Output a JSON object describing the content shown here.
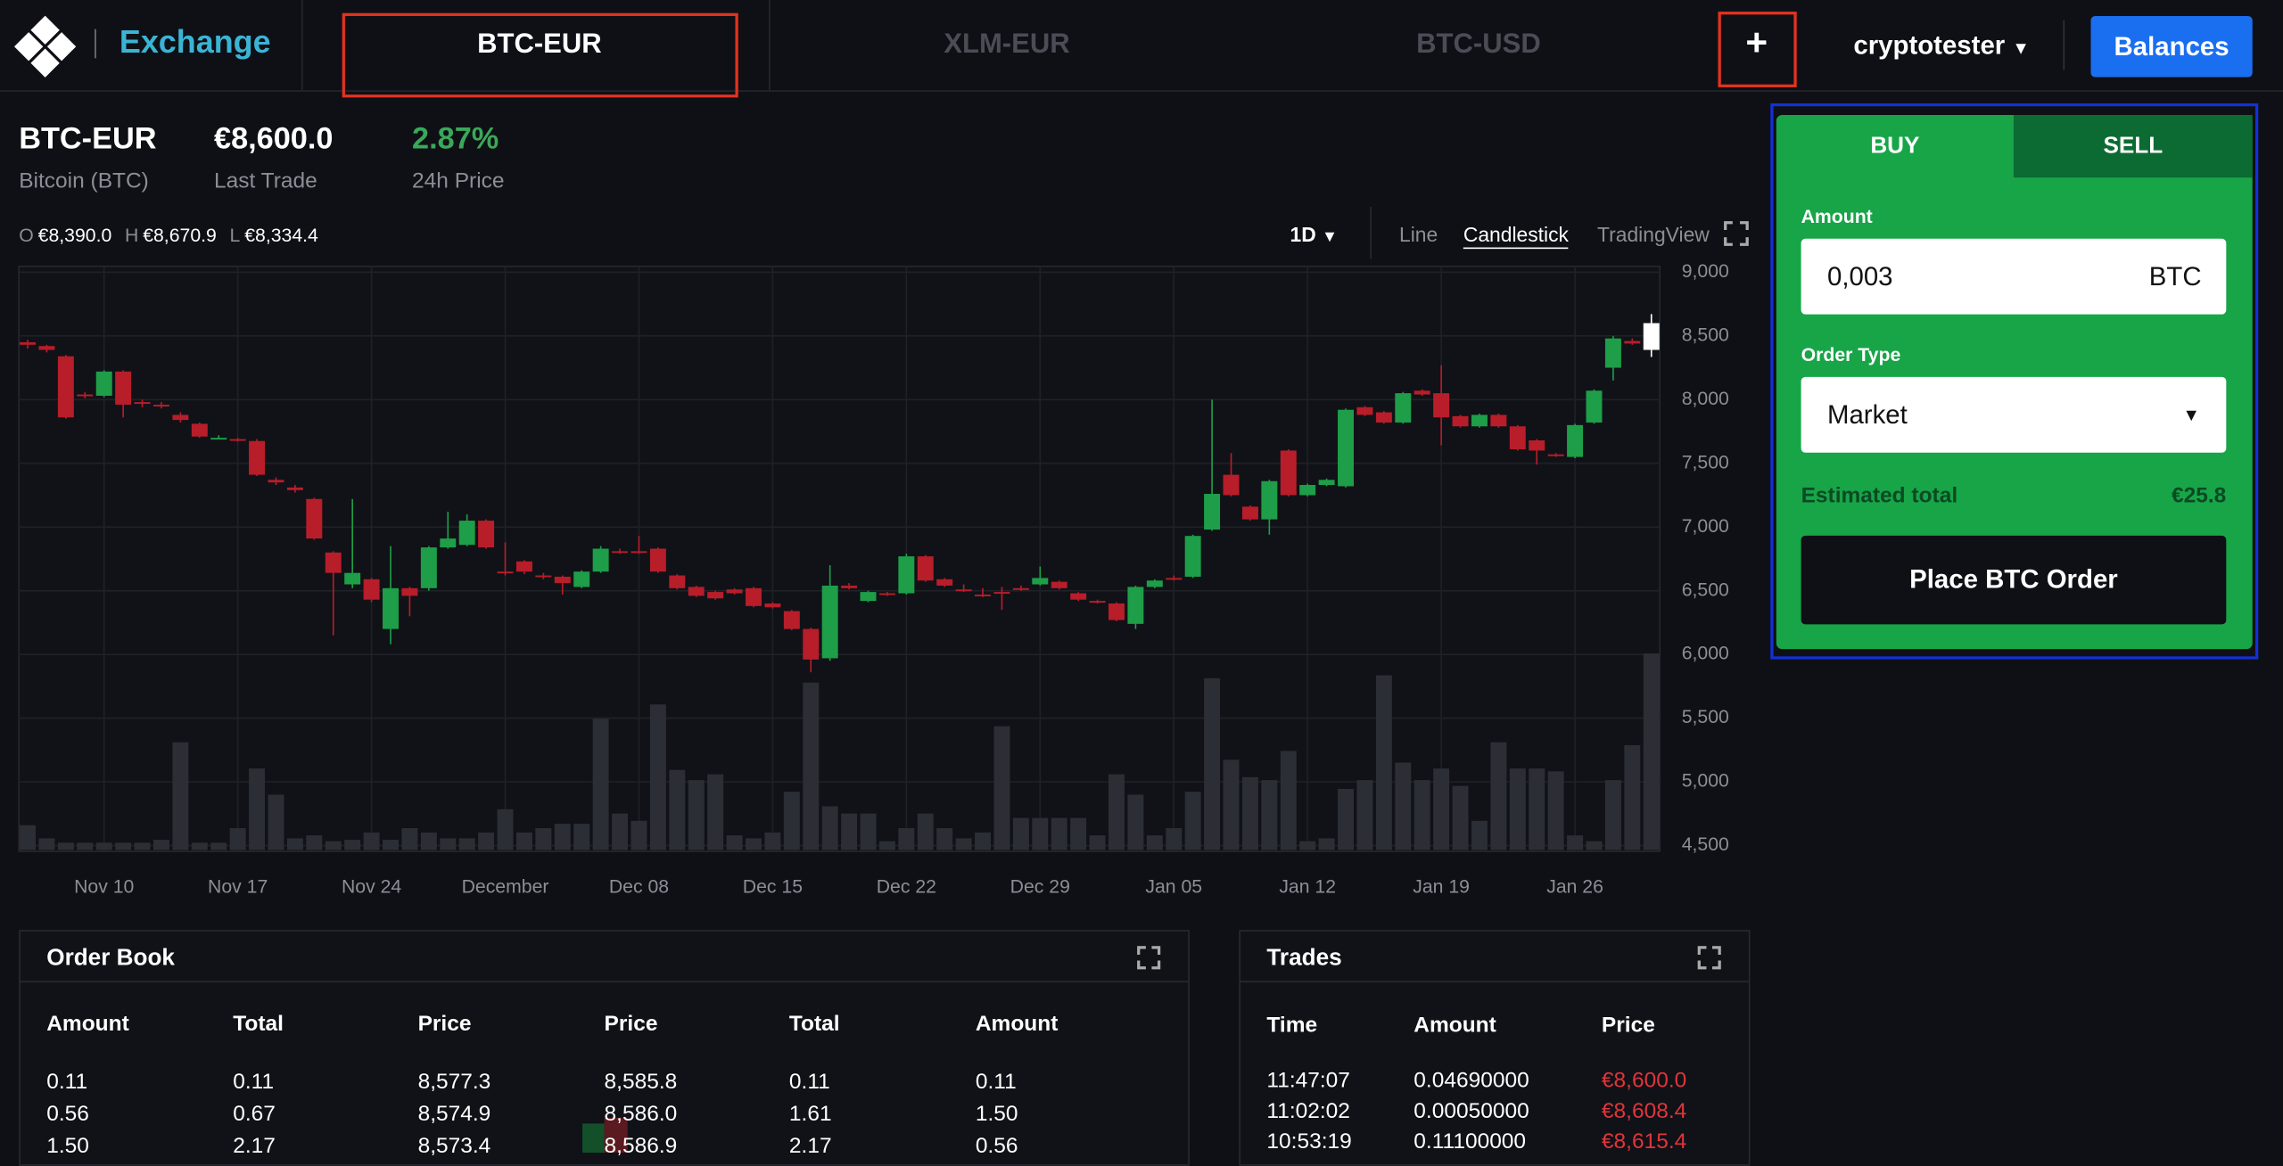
{
  "header": {
    "brand": "Exchange",
    "tabs": [
      "BTC-EUR",
      "XLM-EUR",
      "BTC-USD"
    ],
    "add_tab": "+",
    "user": "cryptotester",
    "balances": "Balances"
  },
  "ticker": {
    "symbol": "BTC-EUR",
    "name": "Bitcoin (BTC)",
    "last_trade": "€8,600.0",
    "last_trade_label": "Last Trade",
    "change": "2.87%",
    "change_label": "24h Price",
    "ohlc": [
      {
        "key": "O",
        "value": "€8,390.0"
      },
      {
        "key": "H",
        "value": "€8,670.9"
      },
      {
        "key": "L",
        "value": "€8,334.4"
      }
    ]
  },
  "controls": {
    "interval": "1D",
    "views": [
      "Line",
      "Candlestick",
      "TradingView"
    ]
  },
  "chart_data": {
    "type": "candlestick",
    "categories": [
      null,
      null,
      null,
      null,
      "Nov 10",
      null,
      null,
      null,
      null,
      null,
      null,
      "Nov 17",
      null,
      null,
      null,
      null,
      null,
      null,
      "Nov 24",
      null,
      null,
      null,
      null,
      null,
      null,
      "December",
      null,
      null,
      null,
      null,
      null,
      null,
      "Dec 08",
      null,
      null,
      null,
      null,
      null,
      null,
      "Dec 15",
      null,
      null,
      null,
      null,
      null,
      null,
      "Dec 22",
      null,
      null,
      null,
      null,
      null,
      null,
      "Dec 29",
      null,
      null,
      null,
      null,
      null,
      null,
      "Jan 05",
      null,
      null,
      null,
      null,
      null,
      null,
      "Jan 12",
      null,
      null,
      null,
      null,
      null,
      null,
      "Jan 19",
      null,
      null,
      null,
      null,
      null,
      null,
      "Jan 26",
      null,
      null,
      null,
      null
    ],
    "open": [
      8450,
      8420,
      8340,
      8040,
      8030,
      8220,
      7980,
      7960,
      7880,
      7810,
      7700,
      7690,
      7675,
      7370,
      7310,
      7220,
      6800,
      6550,
      6590,
      6200,
      6520,
      6520,
      6840,
      6860,
      7050,
      6650,
      6730,
      6620,
      6610,
      6530,
      6650,
      6810,
      6810,
      6830,
      6620,
      6530,
      6490,
      6510,
      6520,
      6400,
      6340,
      6200,
      5970,
      6540,
      6420,
      6480,
      6480,
      6770,
      6590,
      6510,
      6470,
      6490,
      6520,
      6550,
      6570,
      6480,
      6420,
      6400,
      6240,
      6530,
      6600,
      6610,
      6980,
      7410,
      7160,
      7060,
      7600,
      7250,
      7330,
      7320,
      7940,
      7900,
      7820,
      8070,
      8050,
      7870,
      7790,
      7880,
      7790,
      7680,
      7570,
      7550,
      7820,
      8250,
      8460,
      8390
    ],
    "high": [
      8470,
      8430,
      8350,
      8060,
      8230,
      8230,
      8000,
      7980,
      7900,
      7820,
      7720,
      7700,
      7690,
      7390,
      7330,
      7230,
      6810,
      7220,
      6600,
      6850,
      6530,
      6850,
      7120,
      7100,
      7060,
      6880,
      6740,
      6640,
      6620,
      6660,
      6850,
      6830,
      6930,
      6840,
      6630,
      6540,
      6500,
      6520,
      6530,
      6410,
      6350,
      6210,
      6700,
      6560,
      6500,
      6490,
      6790,
      6780,
      6600,
      6550,
      6520,
      6530,
      6540,
      6690,
      6580,
      6490,
      6430,
      6410,
      6540,
      6590,
      6620,
      6940,
      8000,
      7580,
      7170,
      7370,
      7610,
      7340,
      7380,
      7930,
      7950,
      7910,
      8060,
      8080,
      8270,
      7880,
      7890,
      7890,
      7800,
      7690,
      7580,
      7810,
      8080,
      8500,
      8480,
      8670.9
    ],
    "low": [
      8400,
      8370,
      7850,
      8010,
      8020,
      7860,
      7940,
      7930,
      7820,
      7700,
      7690,
      7670,
      7400,
      7330,
      7270,
      6900,
      6150,
      6520,
      6410,
      6080,
      6300,
      6500,
      6830,
      6850,
      6830,
      6620,
      6630,
      6590,
      6470,
      6520,
      6640,
      6790,
      6790,
      6640,
      6510,
      6450,
      6430,
      6470,
      6370,
      6360,
      6190,
      5860,
      5950,
      6510,
      6410,
      6460,
      6470,
      6570,
      6530,
      6490,
      6450,
      6350,
      6500,
      6540,
      6510,
      6420,
      6400,
      6260,
      6200,
      6520,
      6580,
      6600,
      6970,
      7240,
      7050,
      6940,
      7240,
      7240,
      7320,
      7310,
      7870,
      7810,
      7810,
      8030,
      7640,
      7780,
      7780,
      7780,
      7600,
      7490,
      7550,
      7540,
      7810,
      8150,
      8430,
      8334.4
    ],
    "close": [
      8430,
      8390,
      7860,
      8030,
      8220,
      7960,
      7970,
      7950,
      7840,
      7710,
      7700,
      7680,
      7410,
      7350,
      7290,
      6910,
      6640,
      6640,
      6430,
      6520,
      6460,
      6840,
      6910,
      7050,
      6840,
      6640,
      6650,
      6610,
      6560,
      6650,
      6830,
      6800,
      6800,
      6650,
      6520,
      6460,
      6440,
      6480,
      6380,
      6370,
      6200,
      5960,
      6540,
      6520,
      6490,
      6470,
      6770,
      6580,
      6540,
      6500,
      6460,
      6480,
      6510,
      6600,
      6520,
      6430,
      6410,
      6270,
      6530,
      6580,
      6590,
      6930,
      7260,
      7250,
      7060,
      7360,
      7250,
      7330,
      7370,
      7920,
      7880,
      7820,
      8050,
      8040,
      7860,
      7790,
      7880,
      7790,
      7610,
      7600,
      7560,
      7800,
      8070,
      8480,
      8440,
      8600
    ],
    "volume": [
      17,
      8,
      5,
      5,
      5,
      5,
      5,
      7,
      74,
      5,
      5,
      15,
      56,
      38,
      8,
      10,
      6,
      7,
      12,
      7,
      15,
      12,
      8,
      8,
      12,
      28,
      12,
      15,
      18,
      18,
      90,
      25,
      20,
      100,
      55,
      48,
      52,
      10,
      8,
      12,
      40,
      115,
      30,
      25,
      25,
      6,
      15,
      25,
      15,
      8,
      12,
      85,
      22,
      22,
      22,
      22,
      10,
      52,
      38,
      10,
      15,
      40,
      118,
      62,
      50,
      48,
      68,
      6,
      8,
      42,
      48,
      120,
      60,
      48,
      56,
      44,
      20,
      74,
      56,
      56,
      54,
      10,
      6,
      48,
      72,
      135
    ],
    "ylim": [
      4500,
      9000
    ],
    "yticks": [
      {
        "value": 4500,
        "label": "4,500"
      },
      {
        "value": 5000,
        "label": "5,000"
      },
      {
        "value": 5500,
        "label": "5,500"
      },
      {
        "value": 6000,
        "label": "6,000"
      },
      {
        "value": 6500,
        "label": "6,500"
      },
      {
        "value": 7000,
        "label": "7,000"
      },
      {
        "value": 7500,
        "label": "7,500"
      },
      {
        "value": 8000,
        "label": "8,000"
      },
      {
        "value": 8500,
        "label": "8,500"
      },
      {
        "value": 9000,
        "label": "9,000"
      }
    ],
    "grid": true,
    "up_color": "#1e9e48",
    "down_color": "#b81d2a",
    "current_color": "#ffffff",
    "volume_color": "#2b2e34"
  },
  "order_book": {
    "title": "Order Book",
    "headers": [
      "Amount",
      "Total",
      "Price",
      "Price",
      "Total",
      "Amount"
    ],
    "rows": [
      [
        "0.11",
        "0.11",
        "8,577.3",
        "8,585.8",
        "0.11",
        "0.11"
      ],
      [
        "0.56",
        "0.67",
        "8,574.9",
        "8,586.0",
        "1.61",
        "1.50"
      ],
      [
        "1.50",
        "2.17",
        "8,573.4",
        "8,586.9",
        "2.17",
        "0.56"
      ]
    ]
  },
  "trades": {
    "title": "Trades",
    "headers": [
      "Time",
      "Amount",
      "Price"
    ],
    "rows": [
      [
        "11:47:07",
        "0.04690000",
        "€8,600.0"
      ],
      [
        "11:02:02",
        "0.00050000",
        "€8,608.4"
      ],
      [
        "10:53:19",
        "0.11100000",
        "€8,615.4"
      ]
    ]
  },
  "order_form": {
    "tabs": [
      "BUY",
      "SELL"
    ],
    "amount_label": "Amount",
    "amount": "0,003",
    "amount_unit": "BTC",
    "order_type_label": "Order Type",
    "order_type": "Market",
    "estimated_label": "Estimated total",
    "estimated": "€25.8",
    "submit": "Place BTC Order"
  }
}
